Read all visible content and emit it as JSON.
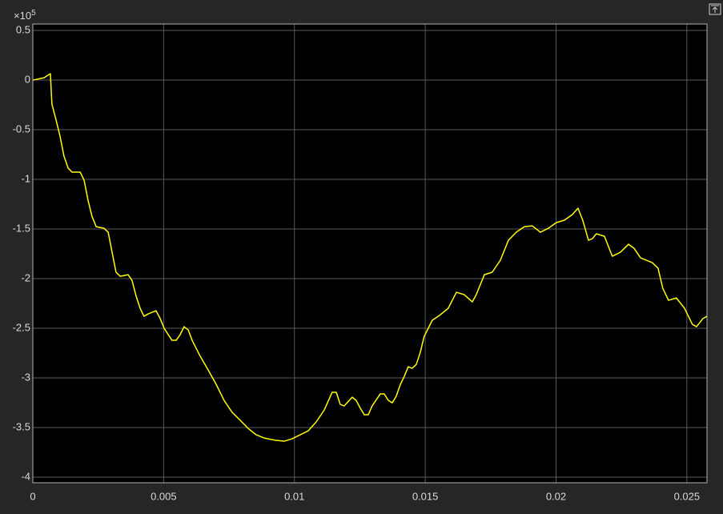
{
  "chart_data": {
    "type": "line",
    "y_multiplier": {
      "base": "×10",
      "exponent": "5"
    },
    "xlim": [
      0,
      0.02577
    ],
    "ylim": [
      -4.056,
      0.565
    ],
    "xticks": [
      0,
      0.005,
      0.01,
      0.015,
      0.02,
      0.025
    ],
    "yticks": [
      0.5,
      0,
      -0.5,
      -1,
      -1.5,
      -2,
      -2.5,
      -3,
      -3.5,
      -4
    ],
    "grid": true,
    "series": [
      {
        "color": "#ffff00",
        "x": [
          0,
          0.00043,
          0.00067,
          0.00073,
          0.00089,
          0.00104,
          0.00119,
          0.00135,
          0.0015,
          0.00181,
          0.00196,
          0.00211,
          0.00226,
          0.00242,
          0.00272,
          0.00288,
          0.00303,
          0.00318,
          0.00334,
          0.00364,
          0.00379,
          0.00395,
          0.0041,
          0.00425,
          0.00441,
          0.00471,
          0.00487,
          0.00502,
          0.00532,
          0.00548,
          0.00563,
          0.00578,
          0.00594,
          0.00609,
          0.0064,
          0.0067,
          0.00701,
          0.00731,
          0.00762,
          0.00793,
          0.00823,
          0.00854,
          0.00884,
          0.0093,
          0.00961,
          0.00991,
          0.01022,
          0.01053,
          0.01083,
          0.01114,
          0.01144,
          0.0116,
          0.01175,
          0.0119,
          0.01221,
          0.01236,
          0.01252,
          0.01267,
          0.01282,
          0.01297,
          0.01328,
          0.01343,
          0.01359,
          0.01374,
          0.01389,
          0.01405,
          0.0142,
          0.01435,
          0.0145,
          0.01466,
          0.01481,
          0.01496,
          0.01527,
          0.01558,
          0.01588,
          0.01619,
          0.01649,
          0.0168,
          0.01695,
          0.01726,
          0.01756,
          0.01787,
          0.01818,
          0.01848,
          0.01879,
          0.01909,
          0.0194,
          0.01971,
          0.02001,
          0.02032,
          0.02062,
          0.02084,
          0.02102,
          0.02124,
          0.02139,
          0.02154,
          0.02185,
          0.02215,
          0.02246,
          0.02277,
          0.02298,
          0.02323,
          0.02368,
          0.0239,
          0.02408,
          0.0243,
          0.0246,
          0.02491,
          0.02521,
          0.02537,
          0.02561,
          0.02577
        ],
        "values": [
          0,
          0.024,
          0.065,
          -0.242,
          -0.403,
          -0.565,
          -0.766,
          -0.887,
          -0.927,
          -0.927,
          -1.008,
          -1.21,
          -1.371,
          -1.476,
          -1.492,
          -1.532,
          -1.734,
          -1.935,
          -1.976,
          -1.96,
          -2.016,
          -2.177,
          -2.298,
          -2.379,
          -2.355,
          -2.323,
          -2.403,
          -2.5,
          -2.621,
          -2.621,
          -2.565,
          -2.484,
          -2.516,
          -2.621,
          -2.782,
          -2.919,
          -3.065,
          -3.226,
          -3.347,
          -3.427,
          -3.508,
          -3.573,
          -3.605,
          -3.629,
          -3.637,
          -3.613,
          -3.573,
          -3.532,
          -3.444,
          -3.323,
          -3.145,
          -3.145,
          -3.266,
          -3.282,
          -3.194,
          -3.226,
          -3.306,
          -3.371,
          -3.371,
          -3.282,
          -3.161,
          -3.161,
          -3.226,
          -3.25,
          -3.185,
          -3.065,
          -2.984,
          -2.887,
          -2.903,
          -2.863,
          -2.742,
          -2.581,
          -2.419,
          -2.363,
          -2.298,
          -2.137,
          -2.161,
          -2.234,
          -2.161,
          -1.96,
          -1.935,
          -1.815,
          -1.613,
          -1.532,
          -1.476,
          -1.468,
          -1.532,
          -1.492,
          -1.435,
          -1.411,
          -1.355,
          -1.29,
          -1.411,
          -1.613,
          -1.597,
          -1.548,
          -1.573,
          -1.774,
          -1.734,
          -1.653,
          -1.694,
          -1.79,
          -1.839,
          -1.895,
          -2.097,
          -2.218,
          -2.194,
          -2.298,
          -2.46,
          -2.484,
          -2.403,
          -2.379
        ]
      }
    ]
  }
}
